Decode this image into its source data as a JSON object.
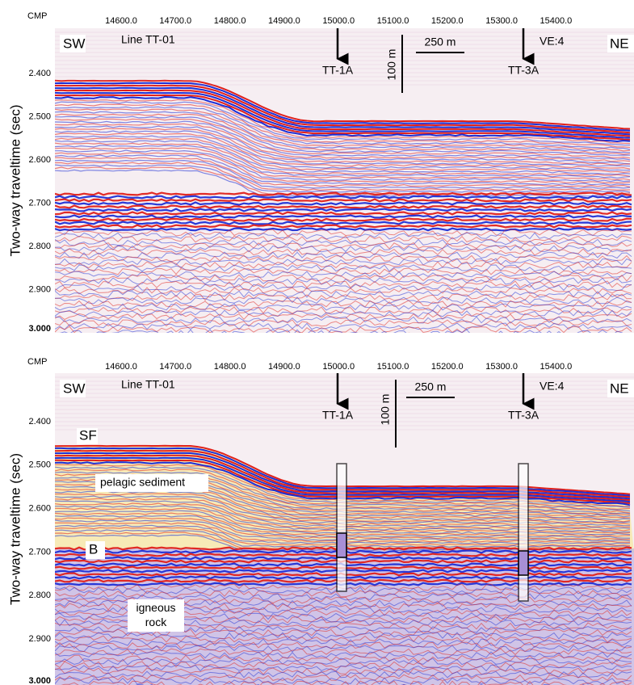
{
  "panels": [
    {
      "cmp_label": "CMP",
      "xticks": [
        "14600.0",
        "14700.0",
        "14800.0",
        "14900.0",
        "15000.0",
        "15100.0",
        "15200.0",
        "15300.0",
        "15400.0"
      ],
      "yticks": [
        "2.400",
        "2.500",
        "2.600",
        "2.700",
        "2.800",
        "2.900",
        "3.000"
      ],
      "ylabel": "Two-way traveltime (sec)",
      "sw": "SW",
      "ne": "NE",
      "line": "Line TT-01",
      "scale_v": "100 m",
      "scale_h": "250 m",
      "ve": "VE:4",
      "wells": [
        "TT-1A",
        "TT-3A"
      ]
    },
    {
      "cmp_label": "CMP",
      "xticks": [
        "14600.0",
        "14700.0",
        "14800.0",
        "14900.0",
        "15000.0",
        "15100.0",
        "15200.0",
        "15300.0",
        "15400.0"
      ],
      "yticks": [
        "2.400",
        "2.500",
        "2.600",
        "2.700",
        "2.800",
        "2.900",
        "3.000"
      ],
      "ylabel": "Two-way traveltime (sec)",
      "sw": "SW",
      "ne": "NE",
      "line": "Line TT-01",
      "scale_v": "100 m",
      "scale_h": "250 m",
      "ve": "VE:4",
      "wells": [
        "TT-1A",
        "TT-3A"
      ],
      "units": [
        "SF",
        "pelagic sediment",
        "B",
        "igneous rock"
      ]
    }
  ]
}
